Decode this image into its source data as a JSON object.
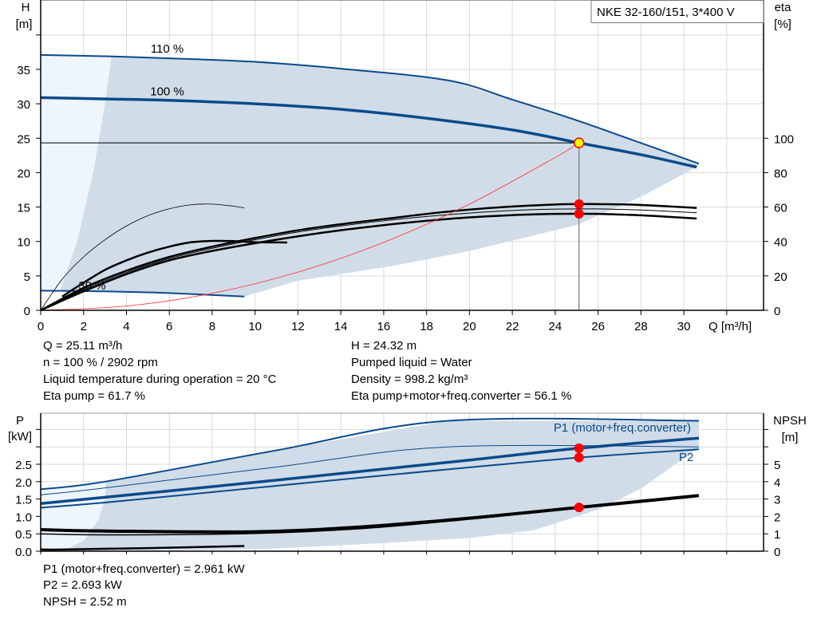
{
  "chart_data": [
    {
      "type": "line",
      "title": "NKE 32-160/151, 3*400 V",
      "xlabel": "Q [m³/h]",
      "ylabel": "H [m]",
      "ylabel_lines": [
        "H",
        "[m]"
      ],
      "y2label_lines": [
        "eta",
        "[%]"
      ],
      "xlim": [
        0,
        33.7
      ],
      "ylim": [
        0,
        45
      ],
      "y2lim": [
        0,
        180
      ],
      "grid": true,
      "x_ticks": [
        0,
        2,
        4,
        6,
        8,
        10,
        12,
        14,
        16,
        18,
        20,
        22,
        24,
        26,
        28,
        30
      ],
      "y_ticks": [
        0,
        5,
        10,
        15,
        20,
        25,
        30,
        35
      ],
      "y2_ticks": [
        0,
        20,
        40,
        60,
        80,
        100
      ],
      "colors": {
        "curve": "#0b4a8b",
        "range": "#d0dce8",
        "range_light": "#eef5fc",
        "eta": "#000000",
        "system": "#ff3030",
        "grid": "#d9d9d9"
      },
      "curve_labels": [
        {
          "text": "110 %",
          "q": 5.9,
          "h": 37.4
        },
        {
          "text": "100 %",
          "q": 5.9,
          "h": 31.2
        },
        {
          "text": "30 %",
          "q": 2.4,
          "h": 3.0
        }
      ],
      "series": [
        {
          "name": "110 %",
          "axis": "H",
          "points": [
            [
              0,
              37.1
            ],
            [
              3,
              36.9
            ],
            [
              6,
              36.6
            ],
            [
              10,
              36.1
            ],
            [
              14,
              35.1
            ],
            [
              19,
              33.4
            ],
            [
              22,
              30.6
            ],
            [
              25,
              27.6
            ],
            [
              28,
              24.3
            ],
            [
              30.7,
              21.3
            ]
          ]
        },
        {
          "name": "100 %",
          "axis": "H",
          "points": [
            [
              0,
              30.9
            ],
            [
              3,
              30.7
            ],
            [
              6,
              30.5
            ],
            [
              10,
              30.0
            ],
            [
              14,
              29.2
            ],
            [
              18,
              27.9
            ],
            [
              22,
              26.2
            ],
            [
              25.11,
              24.32
            ],
            [
              28,
              22.6
            ],
            [
              30.6,
              20.8
            ]
          ]
        },
        {
          "name": "30 %",
          "axis": "H",
          "points": [
            [
              0,
              2.85
            ],
            [
              3,
              2.75
            ],
            [
              6,
              2.5
            ],
            [
              9.5,
              2.0
            ]
          ]
        },
        {
          "axis": "eta",
          "points": [
            [
              0,
              0
            ],
            [
              2,
              13
            ],
            [
              4,
              23
            ],
            [
              6,
              31
            ],
            [
              8,
              37
            ],
            [
              10,
              42
            ],
            [
              12,
              46.5
            ],
            [
              14,
              50
            ],
            [
              16,
              53
            ],
            [
              18,
              56
            ],
            [
              20,
              58.5
            ],
            [
              22,
              60.3
            ],
            [
              24,
              61.5
            ],
            [
              25.11,
              61.7
            ],
            [
              26,
              61.7
            ],
            [
              28,
              61.2
            ],
            [
              30.6,
              59.5
            ]
          ]
        },
        {
          "axis": "eta",
          "points": [
            [
              0,
              0
            ],
            [
              2,
              12
            ],
            [
              4,
              22
            ],
            [
              6,
              30
            ],
            [
              8,
              36
            ],
            [
              10,
              41
            ],
            [
              12,
              45.5
            ],
            [
              14,
              49
            ],
            [
              16,
              52
            ],
            [
              18,
              54.5
            ],
            [
              20,
              56.5
            ],
            [
              22,
              58
            ],
            [
              24,
              58.8
            ],
            [
              26,
              58.9
            ],
            [
              28,
              58.3
            ],
            [
              30.6,
              56.7
            ]
          ]
        },
        {
          "axis": "eta",
          "points": [
            [
              0,
              0
            ],
            [
              2,
              11
            ],
            [
              4,
              21
            ],
            [
              6,
              29
            ],
            [
              8,
              34.5
            ],
            [
              10,
              39
            ],
            [
              12,
              43
            ],
            [
              14,
              46.5
            ],
            [
              16,
              49.5
            ],
            [
              18,
              52
            ],
            [
              20,
              54
            ],
            [
              22,
              55.3
            ],
            [
              24,
              56
            ],
            [
              25.11,
              56.1
            ],
            [
              26,
              56
            ],
            [
              28,
              55.2
            ],
            [
              30.6,
              53.3
            ]
          ]
        },
        {
          "axis": "eta",
          "points": [
            [
              0,
              0
            ],
            [
              1,
              18
            ],
            [
              2,
              31
            ],
            [
              3,
              41
            ],
            [
              4,
              49
            ],
            [
              5,
              55
            ],
            [
              6,
              59
            ],
            [
              7,
              61.3
            ],
            [
              8,
              61.7
            ],
            [
              9,
              60.5
            ],
            [
              9.5,
              59.5
            ]
          ]
        },
        {
          "axis": "eta",
          "points": [
            [
              1,
              8
            ],
            [
              2,
              16
            ],
            [
              3,
              23.5
            ],
            [
              4,
              29
            ],
            [
              5,
              33.5
            ],
            [
              6,
              37
            ],
            [
              7,
              39.5
            ],
            [
              8,
              40.3
            ],
            [
              9,
              40.2
            ],
            [
              10,
              39.6
            ],
            [
              11.5,
              39.4
            ]
          ]
        },
        {
          "name": "system",
          "axis": "H",
          "points": [
            [
              0,
              0
            ],
            [
              4,
              0.62
            ],
            [
              8,
              2.47
            ],
            [
              12,
              5.55
            ],
            [
              16,
              9.87
            ],
            [
              20,
              15.43
            ],
            [
              24,
              22.2
            ],
            [
              25.11,
              24.32
            ]
          ]
        }
      ],
      "operating_point": {
        "q": 25.11,
        "h": 24.32,
        "eta_pump": 61.7,
        "eta_total": 56.1
      }
    },
    {
      "type": "line",
      "xlabel": "",
      "ylabel_lines": [
        "P",
        "[kW]"
      ],
      "y2label_lines": [
        "NPSH",
        "[m]"
      ],
      "xlim": [
        0,
        33.7
      ],
      "ylim": [
        0,
        3.97
      ],
      "y2lim": [
        0,
        7.94
      ],
      "grid": true,
      "y_ticks": [
        "0.0",
        "0.5",
        "1.0",
        "1.5",
        "2.0",
        "2.5"
      ],
      "y2_ticks": [
        0,
        1,
        2,
        3,
        4,
        5
      ],
      "curve_labels": [
        {
          "text": "P1 (motor+freq.converter)",
          "q": 23.0,
          "p": 3.8
        },
        {
          "text": "P2",
          "q": 29.7,
          "p": 2.7
        }
      ],
      "series": [
        {
          "axis": "P",
          "points": [
            [
              0,
              1.78
            ],
            [
              3,
              2.0
            ],
            [
              11,
              2.9
            ],
            [
              19,
              3.75
            ],
            [
              30.7,
              3.75
            ]
          ]
        },
        {
          "axis": "P",
          "points": [
            [
              0,
              1.62
            ],
            [
              3,
              1.82
            ],
            [
              11,
              2.42
            ],
            [
              19,
              3.0
            ],
            [
              30.7,
              3.0
            ]
          ]
        },
        {
          "name": "P1 (motor+freq.converter)",
          "axis": "P",
          "points": [
            [
              0,
              1.37
            ],
            [
              3,
              1.55
            ],
            [
              10,
              1.98
            ],
            [
              15,
              2.3
            ],
            [
              20,
              2.62
            ],
            [
              25.11,
              2.961
            ],
            [
              30.7,
              3.25
            ]
          ]
        },
        {
          "name": "P2",
          "axis": "P",
          "points": [
            [
              0,
              1.25
            ],
            [
              3,
              1.4
            ],
            [
              10,
              1.82
            ],
            [
              15,
              2.12
            ],
            [
              20,
              2.41
            ],
            [
              25.11,
              2.693
            ],
            [
              30.7,
              2.93
            ]
          ]
        },
        {
          "name": "NPSH",
          "axis": "NPSH",
          "points": [
            [
              0,
              1.24
            ],
            [
              3,
              1.16
            ],
            [
              10,
              1.12
            ],
            [
              15,
              1.4
            ],
            [
              20,
              1.9
            ],
            [
              25.11,
              2.52
            ],
            [
              30.7,
              3.2
            ]
          ]
        },
        {
          "axis": "NPSH",
          "points": [
            [
              0,
              1.0
            ],
            [
              3,
              0.94
            ],
            [
              10,
              1.02
            ],
            [
              15,
              1.3
            ],
            [
              20,
              1.84
            ],
            [
              25.11,
              2.48
            ],
            [
              30.7,
              3.16
            ]
          ]
        },
        {
          "axis": "P",
          "points": [
            [
              0,
              0.05
            ],
            [
              1,
              0.05
            ],
            [
              5,
              0.09
            ],
            [
              9.5,
              0.15
            ]
          ]
        }
      ],
      "operating_point": {
        "q": 25.11,
        "p1": 2.961,
        "p2": 2.693,
        "npsh": 2.52
      }
    }
  ],
  "info_top": {
    "left": [
      "Q = 25.11 m³/h",
      "n = 100 % / 2902 rpm",
      "Liquid temperature during operation = 20 °C",
      "Eta pump = 61.7 %"
    ],
    "right": [
      "H = 24.32 m",
      "Pumped liquid = Water",
      "Density = 998.2 kg/m³",
      "Eta pump+motor+freq.converter = 56.1 %"
    ]
  },
  "info_bottom": [
    "P1 (motor+freq.converter) = 2.961 kW",
    "P2 = 2.693 kW",
    "NPSH = 2.52 m"
  ]
}
